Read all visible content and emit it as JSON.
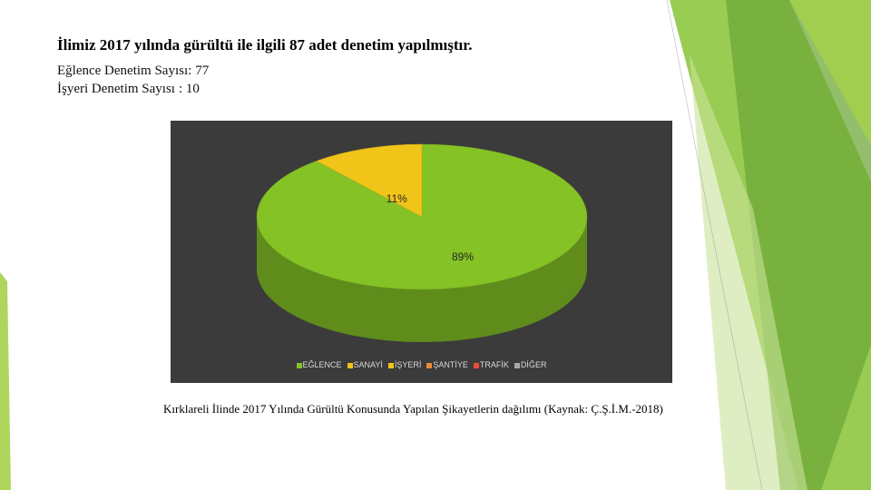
{
  "heading": "İlimiz 2017 yılında gürültü ile ilgili 87 adet denetim yapılmıştır.",
  "stats": [
    {
      "label": "Eğlence Denetim Sayısı:",
      "value": "77"
    },
    {
      "label": "İşyeri Denetim Sayısı",
      "value": ": 10"
    }
  ],
  "caption": "Kırklareli İlinde 2017 Yılında Gürültü Konusunda Yapılan Şikayetlerin dağılımı (Kaynak: Ç.Ş.İ.M.-2018)",
  "colors": {
    "chart_background": "#3b3b3b",
    "eglence": "#84c225",
    "isyeri": "#f0c419"
  },
  "chart_data": {
    "type": "pie",
    "title": "",
    "categories": [
      "EĞLENCE",
      "SANAYİ",
      "İŞYERİ",
      "ŞANTİYE",
      "TRAFİK",
      "DİĞER"
    ],
    "values": [
      89,
      0,
      11,
      0,
      0,
      0
    ],
    "data_labels": [
      "89%",
      "",
      "11%",
      "",
      "",
      ""
    ],
    "legend_colors": [
      "#84c225",
      "#f0c419",
      "#f0c419",
      "#e8893a",
      "#e84c3d",
      "#a8a8a8"
    ],
    "legend_position": "bottom",
    "three_d": true
  }
}
